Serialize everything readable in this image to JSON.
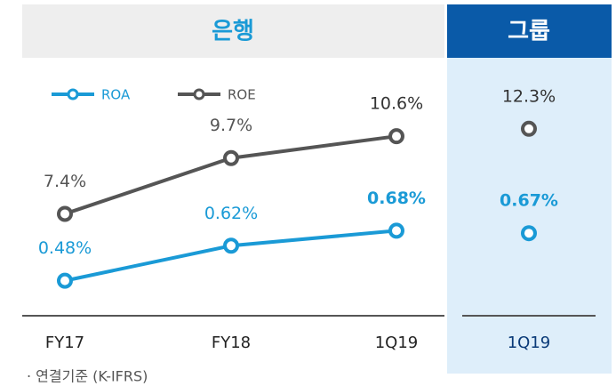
{
  "chart_data": [
    {
      "type": "line",
      "title": "은행",
      "categories": [
        "FY17",
        "FY18",
        "1Q19"
      ],
      "series": [
        {
          "name": "ROA",
          "color": "#1a9ad6",
          "axis": "y2",
          "values": [
            0.48,
            0.62,
            0.68
          ],
          "value_labels": [
            "0.48%",
            "0.62%",
            "0.68%"
          ]
        },
        {
          "name": "ROE",
          "color": "#555555",
          "values": [
            7.4,
            9.7,
            10.6
          ],
          "value_labels": [
            "7.4%",
            "9.7%",
            "10.6%"
          ]
        }
      ],
      "ylim": [
        3.2,
        13.1
      ],
      "y2lim": [
        0.34,
        1.3
      ],
      "legend": "top-left"
    },
    {
      "type": "line",
      "title": "그룹",
      "categories": [
        "1Q19"
      ],
      "series": [
        {
          "color": "#1a9ad6",
          "axis": "y2",
          "values": [
            0.67
          ],
          "value_labels": [
            "0.67%"
          ]
        },
        {
          "color": "#555555",
          "values": [
            12.3
          ],
          "value_labels": [
            "12.3%"
          ]
        }
      ],
      "ylim": [
        0,
        15.8
      ],
      "y2lim": [
        0.34,
        1.3
      ]
    }
  ],
  "footnote": "· 연결기준 (K-IFRS)"
}
